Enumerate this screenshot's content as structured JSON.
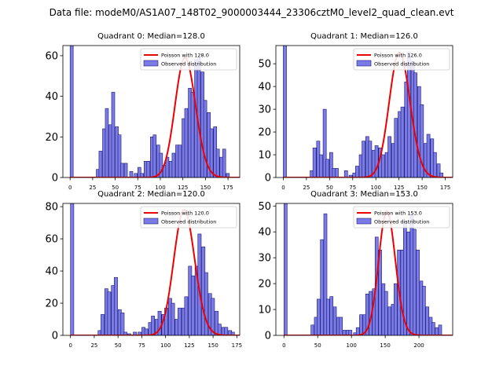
{
  "suptitle": "Data file: modeM0/AS1A07_148T02_9000003444_23306cztM0_level2_quad_clean.evt",
  "colors": {
    "bar_fill": "#7b7be8",
    "bar_edge": "#1a1a6e",
    "poisson": "#ee0000",
    "legend_patch": "#7b7be8"
  },
  "chart_data": [
    {
      "type": "bar",
      "title": "Quadrant 0: Median=128.0",
      "xlim": [
        -8,
        188
      ],
      "ylim": [
        0,
        65
      ],
      "xticks": [
        0,
        25,
        50,
        75,
        100,
        125,
        150,
        175
      ],
      "yticks": [
        0,
        20,
        40,
        60
      ],
      "bin_width": 3.5,
      "bins": [
        [
          0,
          65
        ],
        [
          29,
          4
        ],
        [
          32,
          13
        ],
        [
          36,
          24
        ],
        [
          39,
          34
        ],
        [
          43,
          26
        ],
        [
          46,
          42
        ],
        [
          50,
          25
        ],
        [
          53,
          21
        ],
        [
          56,
          7
        ],
        [
          60,
          7
        ],
        [
          66,
          3
        ],
        [
          71,
          2
        ],
        [
          75,
          5
        ],
        [
          78,
          2
        ],
        [
          82,
          8
        ],
        [
          85,
          8
        ],
        [
          89,
          20
        ],
        [
          92,
          21
        ],
        [
          96,
          16
        ],
        [
          99,
          12
        ],
        [
          103,
          6
        ],
        [
          106,
          10
        ],
        [
          110,
          8
        ],
        [
          113,
          12
        ],
        [
          117,
          16
        ],
        [
          120,
          16
        ],
        [
          124,
          29
        ],
        [
          127,
          34
        ],
        [
          131,
          44
        ],
        [
          134,
          42
        ],
        [
          138,
          58
        ],
        [
          141,
          59
        ],
        [
          145,
          52
        ],
        [
          148,
          38
        ],
        [
          152,
          32
        ],
        [
          155,
          24
        ],
        [
          159,
          25
        ],
        [
          162,
          14
        ],
        [
          166,
          10
        ],
        [
          169,
          14
        ],
        [
          173,
          2
        ]
      ],
      "poisson": {
        "mean": 128.0,
        "peak": 59
      },
      "legend": {
        "line": "Poisson with 128.0",
        "bar": "Observed distribution"
      }
    },
    {
      "type": "bar",
      "title": "Quadrant 1: Median=126.0",
      "xlim": [
        -8,
        183
      ],
      "ylim": [
        0,
        58
      ],
      "xticks": [
        0,
        25,
        50,
        75,
        100,
        125,
        150,
        175
      ],
      "yticks": [
        0,
        10,
        20,
        30,
        40,
        50
      ],
      "bin_width": 3.5,
      "bins": [
        [
          0,
          58
        ],
        [
          29,
          3
        ],
        [
          32,
          13
        ],
        [
          36,
          16
        ],
        [
          39,
          10
        ],
        [
          43,
          30
        ],
        [
          46,
          8
        ],
        [
          50,
          11
        ],
        [
          53,
          4
        ],
        [
          56,
          4
        ],
        [
          66,
          3
        ],
        [
          71,
          1
        ],
        [
          75,
          2
        ],
        [
          78,
          5
        ],
        [
          82,
          10
        ],
        [
          85,
          16
        ],
        [
          89,
          18
        ],
        [
          92,
          16
        ],
        [
          96,
          12
        ],
        [
          99,
          14
        ],
        [
          103,
          13
        ],
        [
          106,
          10
        ],
        [
          110,
          11
        ],
        [
          113,
          18
        ],
        [
          117,
          15
        ],
        [
          120,
          26
        ],
        [
          124,
          29
        ],
        [
          127,
          31
        ],
        [
          131,
          42
        ],
        [
          134,
          55
        ],
        [
          138,
          51
        ],
        [
          141,
          46
        ],
        [
          145,
          40
        ],
        [
          148,
          32
        ],
        [
          152,
          15
        ],
        [
          155,
          19
        ],
        [
          159,
          17
        ],
        [
          162,
          11
        ],
        [
          166,
          6
        ],
        [
          169,
          2
        ]
      ],
      "poisson": {
        "mean": 126.0,
        "peak": 55
      },
      "legend": {
        "line": "Poisson with 126.0",
        "bar": "Observed distribution"
      }
    },
    {
      "type": "bar",
      "title": "Quadrant 2: Median=120.0",
      "xlim": [
        -8,
        178
      ],
      "ylim": [
        0,
        82
      ],
      "xticks": [
        0,
        25,
        50,
        75,
        100,
        125,
        150,
        175
      ],
      "yticks": [
        0,
        20,
        40,
        60,
        80
      ],
      "bin_width": 3.5,
      "bins": [
        [
          0,
          82
        ],
        [
          29,
          3
        ],
        [
          32,
          13
        ],
        [
          36,
          29
        ],
        [
          39,
          27
        ],
        [
          43,
          31
        ],
        [
          46,
          36
        ],
        [
          50,
          16
        ],
        [
          53,
          14
        ],
        [
          56,
          2
        ],
        [
          60,
          1
        ],
        [
          66,
          2
        ],
        [
          71,
          2
        ],
        [
          75,
          5
        ],
        [
          78,
          4
        ],
        [
          82,
          8
        ],
        [
          85,
          12
        ],
        [
          89,
          10
        ],
        [
          92,
          15
        ],
        [
          96,
          13
        ],
        [
          99,
          17
        ],
        [
          103,
          23
        ],
        [
          106,
          20
        ],
        [
          110,
          10
        ],
        [
          113,
          17
        ],
        [
          117,
          17
        ],
        [
          120,
          24
        ],
        [
          124,
          43
        ],
        [
          127,
          37
        ],
        [
          131,
          43
        ],
        [
          134,
          63
        ],
        [
          138,
          55
        ],
        [
          141,
          39
        ],
        [
          145,
          26
        ],
        [
          148,
          23
        ],
        [
          152,
          15
        ],
        [
          155,
          7
        ],
        [
          159,
          5
        ],
        [
          162,
          5
        ],
        [
          166,
          3
        ],
        [
          169,
          2
        ]
      ],
      "poisson": {
        "mean": 120.0,
        "peak": 78
      },
      "legend": {
        "line": "Poisson with 120.0",
        "bar": "Observed distribution"
      }
    },
    {
      "type": "bar",
      "title": "Quadrant 3: Median=153.0",
      "xlim": [
        -12,
        250
      ],
      "ylim": [
        0,
        51
      ],
      "xticks": [
        0,
        50,
        100,
        150,
        200
      ],
      "yticks": [
        0,
        10,
        20,
        30,
        40,
        50
      ],
      "bin_width": 4.7,
      "bins": [
        [
          0,
          51
        ],
        [
          40,
          4
        ],
        [
          45,
          7
        ],
        [
          49,
          14
        ],
        [
          54,
          37
        ],
        [
          59,
          47
        ],
        [
          63,
          14
        ],
        [
          68,
          15
        ],
        [
          73,
          11
        ],
        [
          78,
          7
        ],
        [
          82,
          7
        ],
        [
          87,
          2
        ],
        [
          92,
          2
        ],
        [
          96,
          2
        ],
        [
          103,
          1
        ],
        [
          107,
          3
        ],
        [
          112,
          8
        ],
        [
          117,
          8
        ],
        [
          121,
          16
        ],
        [
          126,
          17
        ],
        [
          131,
          18
        ],
        [
          135,
          38
        ],
        [
          140,
          33
        ],
        [
          145,
          20
        ],
        [
          149,
          17
        ],
        [
          154,
          11
        ],
        [
          159,
          12
        ],
        [
          163,
          20
        ],
        [
          168,
          33
        ],
        [
          173,
          33
        ],
        [
          177,
          44
        ],
        [
          182,
          40
        ],
        [
          187,
          47
        ],
        [
          191,
          41
        ],
        [
          196,
          33
        ],
        [
          201,
          21
        ],
        [
          205,
          19
        ],
        [
          210,
          11
        ],
        [
          215,
          7
        ],
        [
          219,
          5
        ],
        [
          224,
          3
        ],
        [
          229,
          4
        ]
      ],
      "poisson": {
        "mean": 153.0,
        "peak": 48
      },
      "legend": {
        "line": "Poisson with 153.0",
        "bar": "Observed distribution"
      }
    }
  ]
}
